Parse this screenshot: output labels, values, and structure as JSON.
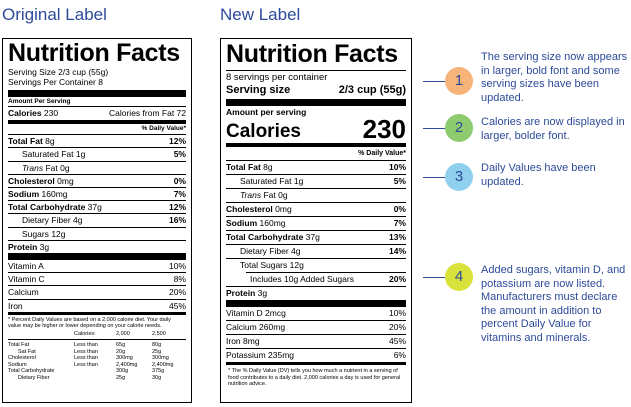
{
  "headings": {
    "original": "Original Label",
    "new": "New Label"
  },
  "original": {
    "title": "Nutrition Facts",
    "serving_size": "Serving Size 2/3 cup (55g)",
    "servings": "Servings Per Container 8",
    "amount_per_serving": "Amount Per Serving",
    "calories_label": "Calories",
    "calories_value": "230",
    "calories_fat": "Calories from Fat 72",
    "dv_header": "% Daily Value*",
    "nutrients": [
      {
        "label": "Total Fat",
        "amount": "8g",
        "dv": "12%"
      },
      {
        "label": "Saturated Fat",
        "amount": "1g",
        "dv": "5%"
      },
      {
        "label": "Trans",
        "amount": "Fat 0g",
        "dv": ""
      },
      {
        "label": "Cholesterol",
        "amount": "0mg",
        "dv": "0%"
      },
      {
        "label": "Sodium",
        "amount": "160mg",
        "dv": "7%"
      },
      {
        "label": "Total Carbohydrate",
        "amount": "37g",
        "dv": "12%"
      },
      {
        "label": "Dietary Fiber",
        "amount": "4g",
        "dv": "16%"
      },
      {
        "label": "Sugars",
        "amount": "12g",
        "dv": ""
      },
      {
        "label": "Protein",
        "amount": "3g",
        "dv": ""
      }
    ],
    "vitamins": [
      {
        "label": "Vitamin A",
        "dv": "10%"
      },
      {
        "label": "Vitamin C",
        "dv": "8%"
      },
      {
        "label": "Calcium",
        "dv": "20%"
      },
      {
        "label": "Iron",
        "dv": "45%"
      }
    ],
    "footnote": "* Percent Daily Values are based on a 2,000 calorie diet. Your daily value may be higher or lower depending on your calorie needs.",
    "fn_header": [
      "",
      "Calories:",
      "2,000",
      "2,500"
    ],
    "fn_rows": [
      [
        "Total Fat",
        "Less than",
        "65g",
        "80g"
      ],
      [
        "Sat Fat",
        "Less than",
        "20g",
        "25g"
      ],
      [
        "Cholesterol",
        "Less than",
        "300mg",
        "300mg"
      ],
      [
        "Sodium",
        "Less than",
        "2,400mg",
        "2,400mg"
      ],
      [
        "Total Carbohydrate",
        "",
        "300g",
        "375g"
      ],
      [
        "Dietary Fiber",
        "",
        "25g",
        "30g"
      ]
    ]
  },
  "new": {
    "title": "Nutrition Facts",
    "servings": "8 servings per container",
    "serving_size_label": "Serving size",
    "serving_size_value": "2/3 cup (55g)",
    "amount_per_serving": "Amount per serving",
    "calories_label": "Calories",
    "calories_value": "230",
    "dv_header": "% Daily Value*",
    "nutrients": [
      {
        "label": "Total Fat",
        "amount": "8g",
        "dv": "10%"
      },
      {
        "label": "Saturated Fat",
        "amount": "1g",
        "dv": "5%"
      },
      {
        "label": "Trans",
        "amount": "Fat 0g",
        "dv": ""
      },
      {
        "label": "Cholesterol",
        "amount": "0mg",
        "dv": "0%"
      },
      {
        "label": "Sodium",
        "amount": "160mg",
        "dv": "7%"
      },
      {
        "label": "Total Carbohydrate",
        "amount": "37g",
        "dv": "13%"
      },
      {
        "label": "Dietary Fiber",
        "amount": "4g",
        "dv": "14%"
      },
      {
        "label": "Total Sugars",
        "amount": "12g",
        "dv": ""
      },
      {
        "label": "Includes 10g Added Sugars",
        "amount": "",
        "dv": "20%"
      },
      {
        "label": "Protein",
        "amount": "3g",
        "dv": ""
      }
    ],
    "vitamins": [
      {
        "label": "Vitamin D 2mcg",
        "dv": "10%"
      },
      {
        "label": "Calcium 260mg",
        "dv": "20%"
      },
      {
        "label": "Iron 8mg",
        "dv": "45%"
      },
      {
        "label": "Potassium 235mg",
        "dv": "6%"
      }
    ],
    "footnote": "* The % Daily Value (DV) tells you how much a nutrient in a serving of food contributes to a daily diet. 2,000 calories a day is used for general nutrition advice."
  },
  "callouts": [
    {
      "number": "1",
      "color": "#f6b37a",
      "text": "The serving size now appears in larger, bold font and some serving sizes have been updated."
    },
    {
      "number": "2",
      "color": "#8dcb6e",
      "text": "Calories are now displayed in larger, bolder font."
    },
    {
      "number": "3",
      "color": "#8fd0ee",
      "text": "Daily Values have been updated."
    },
    {
      "number": "4",
      "color": "#d9e23a",
      "text": "Added sugars, vitamin D, and potassium are now listed. Manufacturers must declare the amount in addition to percent Daily Value for vitamins and minerals."
    }
  ],
  "colors": {
    "accent": "#2e4b9a"
  }
}
